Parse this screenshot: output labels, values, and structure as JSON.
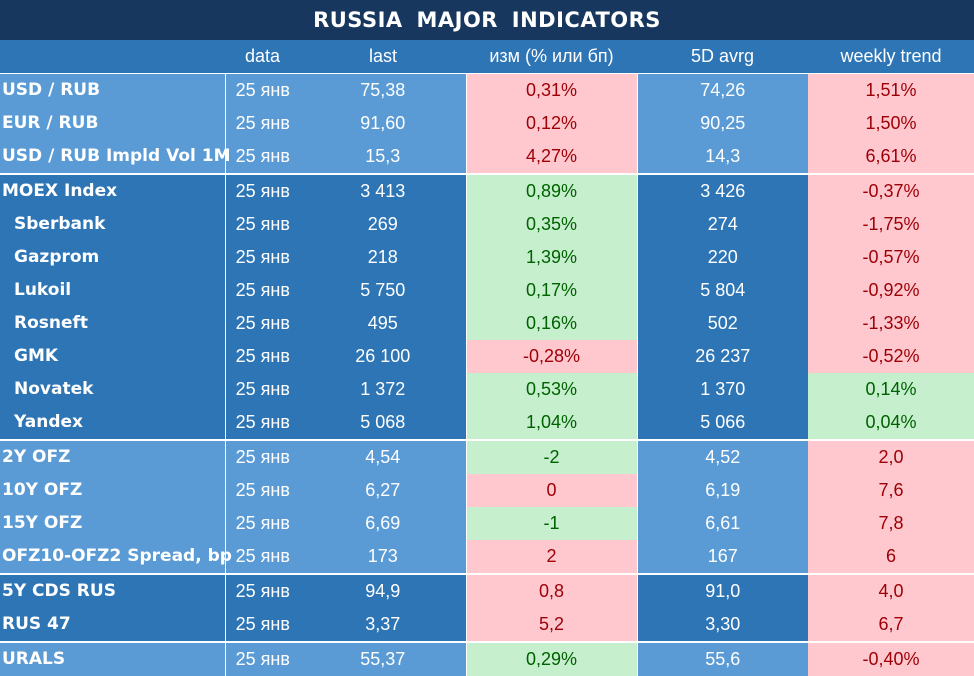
{
  "title": "RUSSIA   MAJOR   INDICATORS",
  "columns": [
    "",
    "data",
    "last",
    "изм (% или бп)",
    "5D avrg",
    "weekly trend"
  ],
  "colors": {
    "header_bg": "#17375e",
    "column_bg_light": "#5b9bd5",
    "column_bg_dark": "#2e75b6",
    "positive_bg": "#c6efce",
    "positive_text": "#006100",
    "negative_bg": "#ffc7ce",
    "negative_text": "#9c0006"
  },
  "rows": [
    {
      "name": "USD / RUB",
      "date": "25 янв",
      "last": "75,38",
      "change": "0,31%",
      "change_sign": "neg",
      "avg5d": "74,26",
      "weekly": "1,51%",
      "weekly_sign": "neg",
      "bg": "light",
      "sub": false,
      "sep": false
    },
    {
      "name": "EUR / RUB",
      "date": "25 янв",
      "last": "91,60",
      "change": "0,12%",
      "change_sign": "neg",
      "avg5d": "90,25",
      "weekly": "1,50%",
      "weekly_sign": "neg",
      "bg": "light",
      "sub": false,
      "sep": false
    },
    {
      "name": "USD / RUB Impld Vol 1M",
      "date": "25 янв",
      "last": "15,3",
      "change": "4,27%",
      "change_sign": "neg",
      "avg5d": "14,3",
      "weekly": "6,61%",
      "weekly_sign": "neg",
      "bg": "light",
      "sub": false,
      "sep": false
    },
    {
      "name": "MOEX Index",
      "date": "25 янв",
      "last": "3 413",
      "change": "0,89%",
      "change_sign": "pos",
      "avg5d": "3 426",
      "weekly": "-0,37%",
      "weekly_sign": "neg",
      "bg": "dark",
      "sub": false,
      "sep": true
    },
    {
      "name": "Sberbank",
      "date": "25 янв",
      "last": "269",
      "change": "0,35%",
      "change_sign": "pos",
      "avg5d": "274",
      "weekly": "-1,75%",
      "weekly_sign": "neg",
      "bg": "dark",
      "sub": true,
      "sep": false
    },
    {
      "name": "Gazprom",
      "date": "25 янв",
      "last": "218",
      "change": "1,39%",
      "change_sign": "pos",
      "avg5d": "220",
      "weekly": "-0,57%",
      "weekly_sign": "neg",
      "bg": "dark",
      "sub": true,
      "sep": false
    },
    {
      "name": "Lukoil",
      "date": "25 янв",
      "last": "5 750",
      "change": "0,17%",
      "change_sign": "pos",
      "avg5d": "5 804",
      "weekly": "-0,92%",
      "weekly_sign": "neg",
      "bg": "dark",
      "sub": true,
      "sep": false
    },
    {
      "name": "Rosneft",
      "date": "25 янв",
      "last": "495",
      "change": "0,16%",
      "change_sign": "pos",
      "avg5d": "502",
      "weekly": "-1,33%",
      "weekly_sign": "neg",
      "bg": "dark",
      "sub": true,
      "sep": false
    },
    {
      "name": "GMK",
      "date": "25 янв",
      "last": "26 100",
      "change": "-0,28%",
      "change_sign": "neg",
      "avg5d": "26 237",
      "weekly": "-0,52%",
      "weekly_sign": "neg",
      "bg": "dark",
      "sub": true,
      "sep": false
    },
    {
      "name": "Novatek",
      "date": "25 янв",
      "last": "1 372",
      "change": "0,53%",
      "change_sign": "pos",
      "avg5d": "1 370",
      "weekly": "0,14%",
      "weekly_sign": "pos",
      "bg": "dark",
      "sub": true,
      "sep": false
    },
    {
      "name": "Yandex",
      "date": "25 янв",
      "last": "5 068",
      "change": "1,04%",
      "change_sign": "pos",
      "avg5d": "5 066",
      "weekly": "0,04%",
      "weekly_sign": "pos",
      "bg": "dark",
      "sub": true,
      "sep": false
    },
    {
      "name": "2Y OFZ",
      "date": "25 янв",
      "last": "4,54",
      "change": "-2",
      "change_sign": "pos",
      "avg5d": "4,52",
      "weekly": "2,0",
      "weekly_sign": "neg",
      "bg": "light",
      "sub": false,
      "sep": true
    },
    {
      "name": "10Y OFZ",
      "date": "25 янв",
      "last": "6,27",
      "change": "0",
      "change_sign": "neg",
      "avg5d": "6,19",
      "weekly": "7,6",
      "weekly_sign": "neg",
      "bg": "light",
      "sub": false,
      "sep": false
    },
    {
      "name": "15Y OFZ",
      "date": "25 янв",
      "last": "6,69",
      "change": "-1",
      "change_sign": "pos",
      "avg5d": "6,61",
      "weekly": "7,8",
      "weekly_sign": "neg",
      "bg": "light",
      "sub": false,
      "sep": false
    },
    {
      "name": "OFZ10-OFZ2 Spread, bp",
      "date": "25 янв",
      "last": "173",
      "change": "2",
      "change_sign": "neg",
      "avg5d": "167",
      "weekly": "6",
      "weekly_sign": "neg",
      "bg": "light",
      "sub": false,
      "sep": false
    },
    {
      "name": "5Y CDS RUS",
      "date": "25 янв",
      "last": "94,9",
      "change": "0,8",
      "change_sign": "neg",
      "avg5d": "91,0",
      "weekly": "4,0",
      "weekly_sign": "neg",
      "bg": "dark",
      "sub": false,
      "sep": true
    },
    {
      "name": "RUS 47",
      "date": "25 янв",
      "last": "3,37",
      "change": "5,2",
      "change_sign": "neg",
      "avg5d": "3,30",
      "weekly": "6,7",
      "weekly_sign": "neg",
      "bg": "dark",
      "sub": false,
      "sep": false
    },
    {
      "name": "URALS",
      "date": "25 янв",
      "last": "55,37",
      "change": "0,29%",
      "change_sign": "pos",
      "avg5d": "55,6",
      "weekly": "-0,40%",
      "weekly_sign": "neg",
      "bg": "light",
      "sub": false,
      "sep": true
    }
  ]
}
